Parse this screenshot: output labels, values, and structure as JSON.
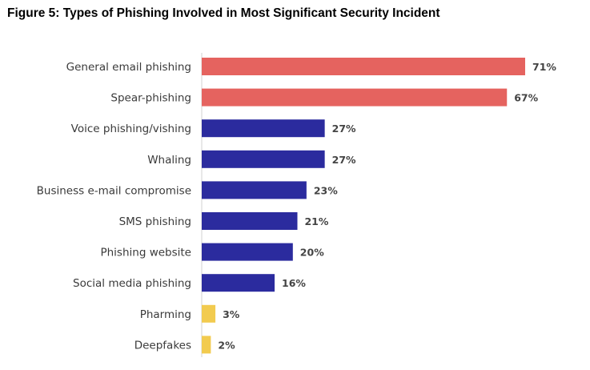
{
  "chart_data": {
    "type": "bar",
    "orientation": "horizontal",
    "title": "Figure 5: Types of Phishing Involved in Most Significant Security Incident",
    "categories": [
      "General email phishing",
      "Spear-phishing",
      "Voice phishing/vishing",
      "Whaling",
      "Business e-mail compromise",
      "SMS phishing",
      "Phishing website",
      "Social media phishing",
      "Pharming",
      "Deepfakes"
    ],
    "values": [
      71,
      67,
      27,
      27,
      23,
      21,
      20,
      16,
      3,
      2
    ],
    "value_labels": [
      "71%",
      "67%",
      "27%",
      "27%",
      "23%",
      "21%",
      "20%",
      "16%",
      "3%",
      "2%"
    ],
    "bar_colors": [
      "#E5635F",
      "#E5635F",
      "#2B2B9E",
      "#2B2B9E",
      "#2B2B9E",
      "#2B2B9E",
      "#2B2B9E",
      "#2B2B9E",
      "#F2CB4F",
      "#F2CB4F"
    ],
    "xlim": [
      0,
      71
    ],
    "grid": false,
    "legend": "none"
  }
}
